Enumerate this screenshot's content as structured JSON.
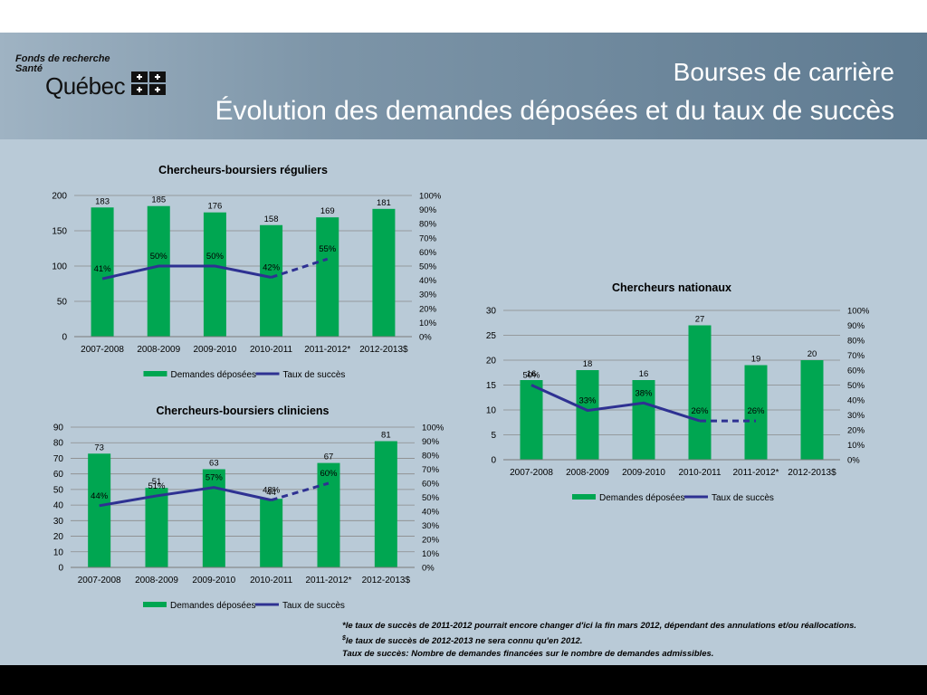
{
  "header": {
    "logo_line1": "Fonds de recherche",
    "logo_line2": "Santé",
    "logo_name": "Québec",
    "title_line1": "Bourses de carrière",
    "title_line2": "Évolution des demandes déposées et du taux de succès"
  },
  "colors": {
    "bar": "#00a651",
    "line": "#2e3192",
    "background": "#b9cad7"
  },
  "footnotes": {
    "note1": "*le taux de succès de 2011-2012 pourrait encore changer d'ici la fin mars 2012, dépendant des annulations et/ou réallocations.",
    "note2_sup": "$",
    "note2": "le taux de succès de 2012-2013 ne sera connu qu'en 2012.",
    "note3": "Taux de succès: Nombre de demandes financées sur le nombre de demandes admissibles."
  },
  "chart_data": [
    {
      "type": "bar",
      "title": "Chercheurs-boursiers réguliers",
      "categories": [
        "2007-2008",
        "2008-2009",
        "2009-2010",
        "2010-2011",
        "2011-2012*",
        "2012-2013$"
      ],
      "legend": {
        "bar": "Demandes déposées",
        "line": "Taux de succès",
        "placement": "bottom"
      },
      "series": [
        {
          "name": "Demandes déposées",
          "axis": "left",
          "values": [
            183,
            185,
            176,
            158,
            169,
            181
          ]
        },
        {
          "name": "Taux de succès",
          "axis": "right",
          "type": "line",
          "values": [
            41,
            50,
            50,
            42,
            55,
            null
          ],
          "dashed_from_index": 3
        }
      ],
      "ylim": [
        0,
        200
      ],
      "yticks": [
        0,
        50,
        100,
        150,
        200
      ],
      "y2lim": [
        0,
        100
      ],
      "y2ticks": [
        0,
        10,
        20,
        30,
        40,
        50,
        60,
        70,
        80,
        90,
        100
      ],
      "y2_unit": "%",
      "grid": true,
      "bar_labels": [
        "183",
        "185",
        "176",
        "158",
        "169",
        "181"
      ],
      "line_labels": [
        "41%",
        "50%",
        "50%",
        "42%",
        "55%",
        null
      ]
    },
    {
      "type": "bar",
      "title": "Chercheurs-boursiers cliniciens",
      "categories": [
        "2007-2008",
        "2008-2009",
        "2009-2010",
        "2010-2011",
        "2011-2012*",
        "2012-2013$"
      ],
      "legend": {
        "bar": "Demandes déposées",
        "line": "Taux de succès",
        "placement": "bottom"
      },
      "series": [
        {
          "name": "Demandes déposées",
          "axis": "left",
          "values": [
            73,
            51,
            63,
            44,
            67,
            81
          ]
        },
        {
          "name": "Taux de succès",
          "axis": "right",
          "type": "line",
          "values": [
            44,
            51,
            57,
            48,
            60,
            null
          ],
          "dashed_from_index": 3
        }
      ],
      "ylim": [
        0,
        90
      ],
      "yticks": [
        0,
        10,
        20,
        30,
        40,
        50,
        60,
        70,
        80,
        90
      ],
      "y2lim": [
        0,
        100
      ],
      "y2ticks": [
        0,
        10,
        20,
        30,
        40,
        50,
        60,
        70,
        80,
        90,
        100
      ],
      "y2_unit": "%",
      "grid": true,
      "bar_labels": [
        "73",
        "51",
        "63",
        "44",
        "67",
        "81"
      ],
      "line_labels": [
        "44%",
        "51%",
        "57%",
        "48%",
        "60%",
        null
      ]
    },
    {
      "type": "bar",
      "title": "Chercheurs nationaux",
      "categories": [
        "2007-2008",
        "2008-2009",
        "2009-2010",
        "2010-2011",
        "2011-2012*",
        "2012-2013$"
      ],
      "legend": {
        "bar": "Demandes déposées",
        "line": "Taux de succès",
        "placement": "bottom"
      },
      "series": [
        {
          "name": "Demandes déposées",
          "axis": "left",
          "values": [
            16,
            18,
            16,
            27,
            19,
            20
          ]
        },
        {
          "name": "Taux de succès",
          "axis": "right",
          "type": "line",
          "values": [
            50,
            33,
            38,
            26,
            26,
            null
          ],
          "dashed_from_index": 3
        }
      ],
      "ylim": [
        0,
        30
      ],
      "yticks": [
        0,
        5,
        10,
        15,
        20,
        25,
        30
      ],
      "y2lim": [
        0,
        100
      ],
      "y2ticks": [
        0,
        10,
        20,
        30,
        40,
        50,
        60,
        70,
        80,
        90,
        100
      ],
      "y2_unit": "%",
      "grid": true,
      "bar_labels": [
        "16",
        "18",
        "16",
        "27",
        "19",
        "20"
      ],
      "line_labels": [
        "50%",
        "33%",
        "38%",
        "26%",
        "26%",
        null
      ]
    }
  ]
}
